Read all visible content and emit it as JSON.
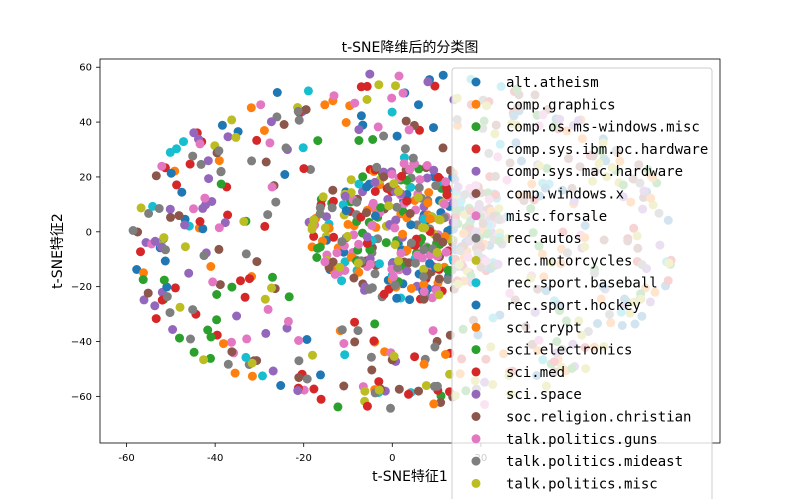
{
  "chart_data": {
    "type": "scatter",
    "title": "t-SNE降维后的分类图",
    "xlabel": "t-SNE特征1",
    "ylabel": "t-SNE特征2",
    "xlim": [
      -66,
      74
    ],
    "ylim": [
      -77,
      63
    ],
    "xticks": [
      "-60",
      "-40",
      "-20",
      "0",
      "20"
    ],
    "xtick_values": [
      -60,
      -40,
      -20,
      0,
      20
    ],
    "yticks": [
      "60",
      "40",
      "20",
      "0",
      "−20",
      "−40",
      "−60"
    ],
    "ytick_values": [
      60,
      40,
      20,
      0,
      -20,
      -40,
      -60
    ],
    "grid": false,
    "legend_position": "right",
    "points_per_class_estimate": 50,
    "series": [
      {
        "name": "alt.atheism",
        "color": "#1f77b4"
      },
      {
        "name": "comp.graphics",
        "color": "#ff7f0e"
      },
      {
        "name": "comp.os.ms-windows.misc",
        "color": "#2ca02c"
      },
      {
        "name": "comp.sys.ibm.pc.hardware",
        "color": "#d62728"
      },
      {
        "name": "comp.sys.mac.hardware",
        "color": "#9467bd"
      },
      {
        "name": "comp.windows.x",
        "color": "#8c564b"
      },
      {
        "name": "misc.forsale",
        "color": "#e377c2"
      },
      {
        "name": "rec.autos",
        "color": "#7f7f7f"
      },
      {
        "name": "rec.motorcycles",
        "color": "#bcbd22"
      },
      {
        "name": "rec.sport.baseball",
        "color": "#17becf"
      },
      {
        "name": "rec.sport.hockey",
        "color": "#1f77b4"
      },
      {
        "name": "sci.crypt",
        "color": "#ff7f0e"
      },
      {
        "name": "sci.electronics",
        "color": "#2ca02c"
      },
      {
        "name": "sci.med",
        "color": "#d62728"
      },
      {
        "name": "sci.space",
        "color": "#9467bd"
      },
      {
        "name": "soc.religion.christian",
        "color": "#8c564b"
      },
      {
        "name": "talk.politics.guns",
        "color": "#e377c2"
      },
      {
        "name": "talk.politics.mideast",
        "color": "#7f7f7f"
      },
      {
        "name": "talk.politics.misc",
        "color": "#bcbd22"
      }
    ]
  }
}
